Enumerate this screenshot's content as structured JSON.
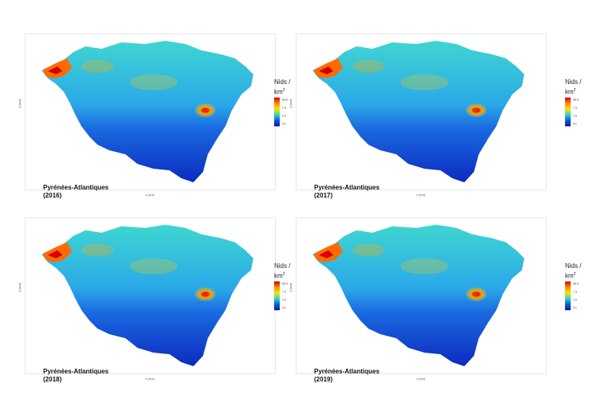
{
  "legend": {
    "title": "Nids /",
    "unit_base": "km",
    "unit_exp": "2",
    "ticks": [
      "59.9",
      "7.4",
      "1.0",
      "0.1"
    ]
  },
  "axes": {
    "y_label": "y (km)",
    "x_label": "x (km)"
  },
  "panels": [
    {
      "region": "Pyrénées-Atlantiques",
      "year": "(2016)"
    },
    {
      "region": "Pyrénées-Atlantiques",
      "year": "(2017)"
    },
    {
      "region": "Pyrénées-Atlantiques",
      "year": "(2018)"
    },
    {
      "region": "Pyrénées-Atlantiques",
      "year": "(2019)"
    }
  ],
  "colors": {
    "low": "#0a1bb0",
    "mid": "#2fd4c8",
    "high": "#d40000"
  }
}
